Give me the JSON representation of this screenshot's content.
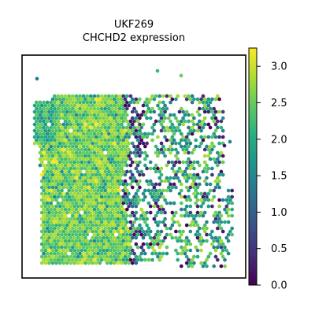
{
  "chart_data": {
    "type": "scatter",
    "title": "UKF269",
    "subtitle": "CHCHD2 expression",
    "xlabel": "",
    "ylabel": "",
    "grid": false,
    "colormap": "viridis",
    "colorbar": {
      "range": [
        0.0,
        3.25
      ],
      "ticks": [
        0.0,
        0.5,
        1.0,
        1.5,
        2.0,
        2.5,
        3.0
      ],
      "tick_labels": [
        "0.0",
        "0.5",
        "1.0",
        "1.5",
        "2.0",
        "2.5",
        "3.0"
      ]
    },
    "spots": {
      "marker": "hexagon",
      "grid": "hexagonal lattice, ~30 columns x ~55 rows",
      "regions": [
        {
          "side": "left",
          "typical_value_range": [
            1.5,
            3.0
          ],
          "density": "dense"
        },
        {
          "side": "right",
          "typical_value_range": [
            0.0,
            3.0
          ],
          "density": "sparse"
        }
      ]
    }
  }
}
